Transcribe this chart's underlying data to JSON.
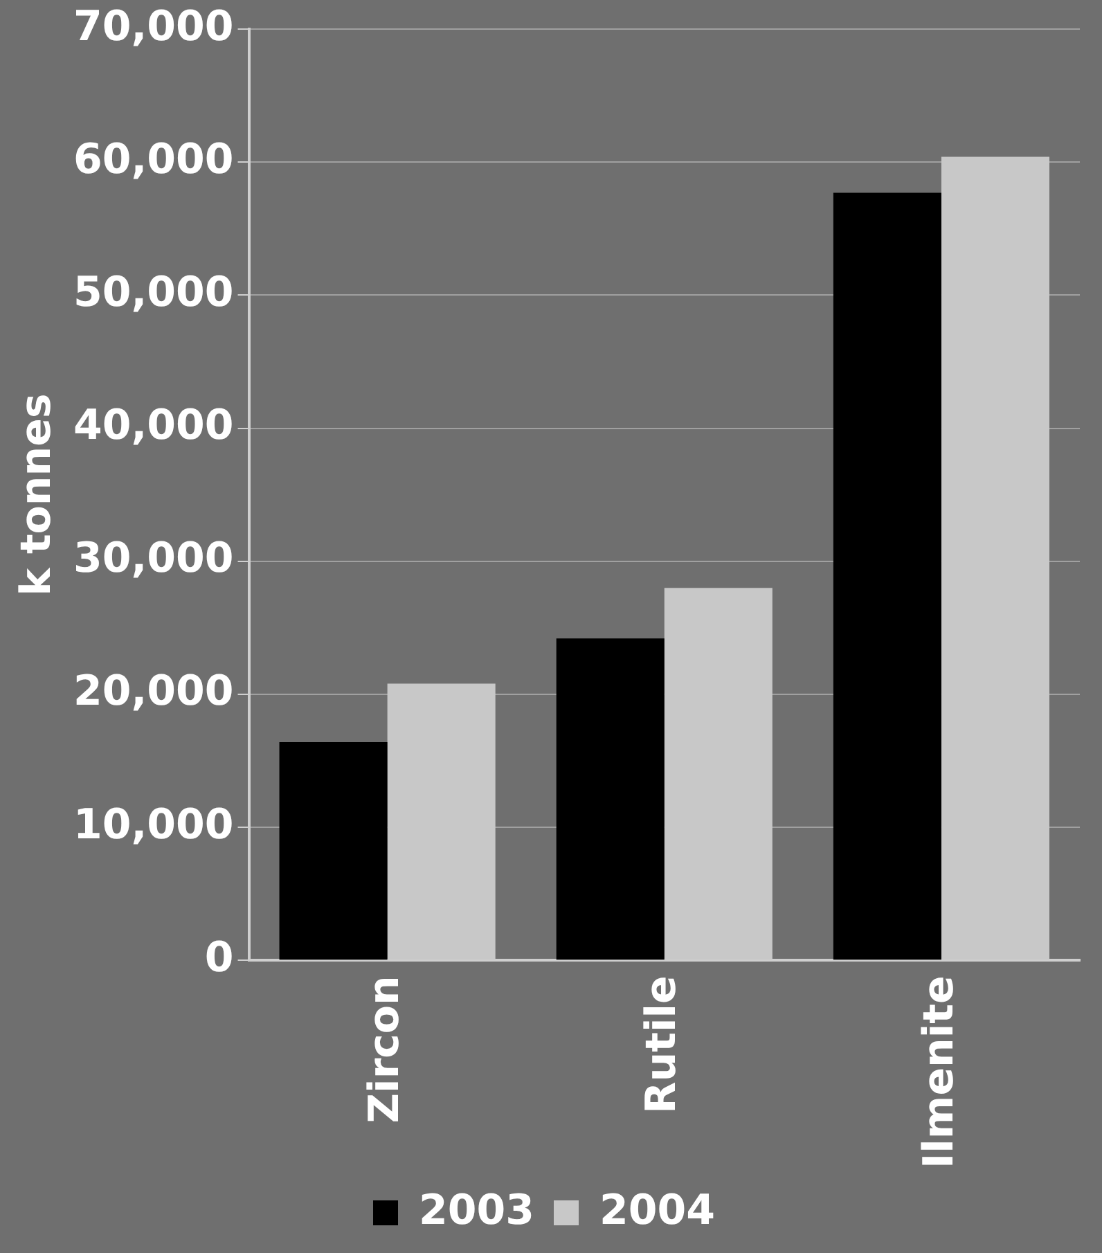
{
  "chart_data": {
    "type": "bar",
    "ylabel": "k tonnes",
    "categories": [
      "Zircon",
      "Rutile",
      "Ilmenite"
    ],
    "series": [
      {
        "name": "2003",
        "color": "#000000",
        "values": [
          16400,
          24200,
          57700
        ]
      },
      {
        "name": "2004",
        "color": "#c8c8c8",
        "values": [
          20800,
          28000,
          60400
        ]
      }
    ],
    "ylim": [
      0,
      70000
    ],
    "yticks": [
      {
        "value": 0,
        "label": "0"
      },
      {
        "value": 10000,
        "label": "10,000"
      },
      {
        "value": 20000,
        "label": "20,000"
      },
      {
        "value": 30000,
        "label": "30,000"
      },
      {
        "value": 40000,
        "label": "40,000"
      },
      {
        "value": 50000,
        "label": "50,000"
      },
      {
        "value": 60000,
        "label": "60,000"
      },
      {
        "value": 70000,
        "label": "70,000"
      }
    ],
    "grid": "y",
    "legend": "bottom"
  }
}
